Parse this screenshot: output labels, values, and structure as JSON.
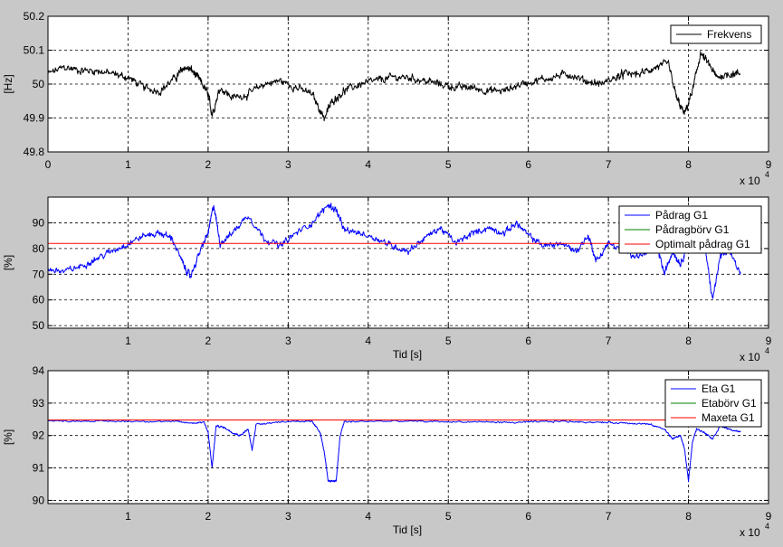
{
  "chart_data": [
    {
      "type": "line",
      "xlim": [
        0,
        90000
      ],
      "ylim": [
        49.8,
        50.2
      ],
      "xticks": [
        0,
        10000,
        20000,
        30000,
        40000,
        50000,
        60000,
        70000,
        80000,
        90000
      ],
      "xtick_labels": [
        "0",
        "1",
        "2",
        "3",
        "4",
        "5",
        "6",
        "7",
        "8",
        "9"
      ],
      "yticks": [
        49.8,
        49.9,
        50,
        50.1,
        50.2
      ],
      "ytick_labels": [
        "49.8",
        "49.9",
        "50",
        "50.1",
        "50.2"
      ],
      "x_exponent_base": "x 10",
      "x_exponent_power": "4",
      "xlabel": "",
      "ylabel": "[Hz]",
      "grid": true,
      "legend": "top-right",
      "series": [
        {
          "name": "Frekvens",
          "color": "#000000",
          "x": [
            0,
            2000,
            4000,
            6000,
            8000,
            10000,
            12000,
            14000,
            16000,
            17000,
            18000,
            19000,
            20000,
            20500,
            21500,
            23000,
            25000,
            27000,
            29000,
            31000,
            33000,
            34500,
            35500,
            37000,
            39000,
            41000,
            43000,
            45000,
            47000,
            49000,
            51000,
            53000,
            55000,
            57000,
            59000,
            61000,
            63000,
            65000,
            67000,
            69000,
            71000,
            72000,
            74000,
            76000,
            77500,
            78500,
            79500,
            80500,
            81500,
            82500,
            83500,
            85000,
            86500
          ],
          "y": [
            50.03,
            50.05,
            50.04,
            50.04,
            50.03,
            50.02,
            49.99,
            49.98,
            50.02,
            50.05,
            50.04,
            50.01,
            49.97,
            49.91,
            49.99,
            49.96,
            49.97,
            50.0,
            50.01,
            49.99,
            49.97,
            49.9,
            49.95,
            49.98,
            50.0,
            50.01,
            50.02,
            50.02,
            50.01,
            50.0,
            49.99,
            49.99,
            49.98,
            49.98,
            50.0,
            50.01,
            50.02,
            50.03,
            50.01,
            50.0,
            50.02,
            50.03,
            50.03,
            50.05,
            50.06,
            49.96,
            49.91,
            49.98,
            50.09,
            50.06,
            50.02,
            50.03,
            50.03
          ]
        }
      ]
    },
    {
      "type": "line",
      "xlim": [
        0,
        90000
      ],
      "ylim": [
        49,
        100
      ],
      "xticks": [
        10000,
        20000,
        30000,
        40000,
        50000,
        60000,
        70000,
        80000,
        90000
      ],
      "xtick_labels": [
        "1",
        "2",
        "3",
        "4",
        "5",
        "6",
        "7",
        "8",
        "9"
      ],
      "yticks": [
        50,
        60,
        70,
        80,
        90
      ],
      "ytick_labels": [
        "50",
        "60",
        "70",
        "80",
        "90"
      ],
      "x_exponent_base": "x 10",
      "x_exponent_power": "4",
      "xlabel": "Tid [s]",
      "ylabel": "[%]",
      "grid": true,
      "legend": "top-right",
      "series": [
        {
          "name": "Pådrag G1",
          "color": "#0000ff",
          "x": [
            0,
            2000,
            4000,
            6000,
            8000,
            10000,
            12000,
            14000,
            15500,
            17000,
            17800,
            19000,
            20000,
            20700,
            21500,
            23000,
            25000,
            27000,
            29000,
            31000,
            33000,
            35000,
            36000,
            37000,
            39000,
            41000,
            43000,
            45000,
            47000,
            49000,
            51000,
            53000,
            55000,
            57000,
            58500,
            60000,
            62000,
            64000,
            66000,
            67500,
            68500,
            70000,
            72000,
            74000,
            76000,
            77000,
            78000,
            79000,
            80000,
            81000,
            82000,
            83000,
            84000,
            85000,
            86500
          ],
          "y": [
            72,
            71,
            73,
            76,
            79,
            82,
            85,
            86,
            84,
            73,
            69,
            79,
            86,
            97,
            82,
            86,
            93,
            84,
            81,
            86,
            90,
            97,
            95,
            87,
            86,
            84,
            81,
            79,
            84,
            88,
            82,
            86,
            88,
            86,
            90,
            85,
            81,
            82,
            79,
            85,
            75,
            82,
            79,
            77,
            82,
            70,
            79,
            74,
            82,
            95,
            82,
            60,
            77,
            79,
            71
          ]
        },
        {
          "name": "Pådragbörv G1",
          "color": "#008000",
          "x": [],
          "y": []
        },
        {
          "name": "Optimalt pådrag G1",
          "color": "#ff0000",
          "x": [
            0,
            86500
          ],
          "y": [
            82,
            82
          ]
        }
      ]
    },
    {
      "type": "line",
      "xlim": [
        0,
        90000
      ],
      "ylim": [
        89.9,
        94
      ],
      "xticks": [
        10000,
        20000,
        30000,
        40000,
        50000,
        60000,
        70000,
        80000,
        90000
      ],
      "xtick_labels": [
        "1",
        "2",
        "3",
        "4",
        "5",
        "6",
        "7",
        "8",
        "9"
      ],
      "yticks": [
        90,
        91,
        92,
        93,
        94
      ],
      "ytick_labels": [
        "90",
        "91",
        "92",
        "93",
        "94"
      ],
      "x_exponent_base": "x 10",
      "x_exponent_power": "4",
      "xlabel": "Tid [s]",
      "ylabel": "[%]",
      "grid": true,
      "legend": "top-right",
      "series": [
        {
          "name": "Eta G1",
          "color": "#0000ff",
          "x": [
            0,
            4000,
            8000,
            12000,
            16000,
            18000,
            19500,
            20000,
            20500,
            21000,
            22000,
            23000,
            24000,
            25000,
            25500,
            26000,
            28000,
            31000,
            33000,
            34000,
            34500,
            35000,
            35500,
            36000,
            36500,
            37000,
            40000,
            44000,
            48000,
            52000,
            55000,
            58000,
            61000,
            64000,
            67000,
            70000,
            73000,
            75000,
            77000,
            78000,
            79000,
            79500,
            80000,
            80500,
            81000,
            82000,
            83000,
            84000,
            85000,
            86500
          ],
          "y": [
            92.45,
            92.45,
            92.44,
            92.44,
            92.43,
            92.38,
            92.42,
            92.1,
            91.0,
            92.3,
            92.25,
            92.1,
            92.0,
            92.2,
            91.55,
            92.35,
            92.4,
            92.45,
            92.42,
            92.1,
            91.5,
            90.6,
            90.6,
            90.6,
            92.0,
            92.42,
            92.44,
            92.44,
            92.43,
            92.42,
            92.42,
            92.4,
            92.42,
            92.44,
            92.42,
            92.4,
            92.38,
            92.35,
            92.2,
            91.9,
            92.0,
            91.6,
            90.6,
            91.8,
            92.2,
            92.1,
            91.9,
            92.3,
            92.2,
            92.1
          ]
        },
        {
          "name": "Etabörv G1",
          "color": "#008000",
          "x": [],
          "y": []
        },
        {
          "name": "Maxeta G1",
          "color": "#ff0000",
          "x": [
            0,
            86500
          ],
          "y": [
            92.48,
            92.48
          ]
        }
      ]
    }
  ]
}
